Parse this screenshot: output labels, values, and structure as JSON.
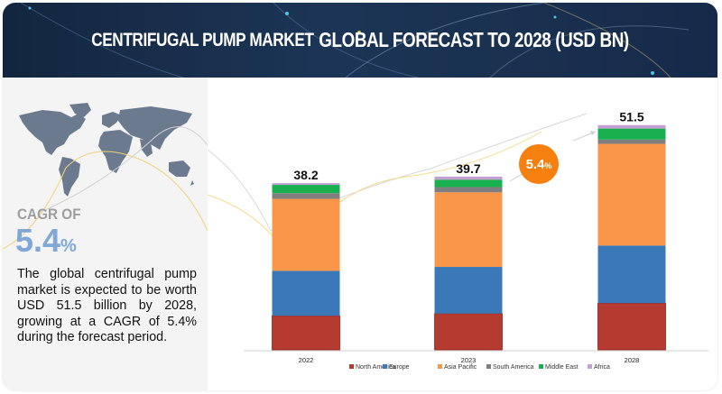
{
  "header": {
    "title_part1": "CENTRIFUGAL PUMP MARKET",
    "title_part2": "GLOBAL FORECAST TO 2028 (USD BN)"
  },
  "sidebar": {
    "map_icon": "world-map-icon",
    "cagr_label": "CAGR OF",
    "cagr_value": "5.4",
    "cagr_unit": "%",
    "description": "The global centrifugal pump market is expected to be worth USD 51.5 billion by 2028, growing at a CAGR of 5.4% during the forecast period."
  },
  "badge": {
    "value": "5.4",
    "unit": "%"
  },
  "colors": {
    "North America": "#b53a2f",
    "Europe": "#3a78b8",
    "Asia Pacific": "#f9964a",
    "South America": "#7f7f7f",
    "Middle East": "#19b04f",
    "Africa": "#c39fd3",
    "badge": "#f57f0f",
    "accent_text": "#7fa7d8"
  },
  "chart_data": {
    "type": "bar",
    "stacked": true,
    "title": "Centrifugal Pump Market Global Forecast to 2028 (USD BN)",
    "xlabel": "",
    "ylabel": "USD BN",
    "categories": [
      "2022",
      "2023",
      "2028"
    ],
    "totals": [
      "38.2",
      "39.7",
      "51.5"
    ],
    "series": [
      {
        "name": "North America",
        "values": [
          7.8,
          8.3,
          10.7
        ]
      },
      {
        "name": "Europe",
        "values": [
          10.3,
          10.7,
          13.2
        ]
      },
      {
        "name": "Asia Pacific",
        "values": [
          16.5,
          17.1,
          23.3
        ]
      },
      {
        "name": "South America",
        "values": [
          1.3,
          1.2,
          1.0
        ]
      },
      {
        "name": "Middle East",
        "values": [
          1.9,
          1.7,
          2.5
        ]
      },
      {
        "name": "Africa",
        "values": [
          0.4,
          0.7,
          0.8
        ]
      }
    ],
    "ylim": [
      0,
      55
    ],
    "grid": false,
    "legend": "bottom",
    "annotation": "5.4%"
  }
}
